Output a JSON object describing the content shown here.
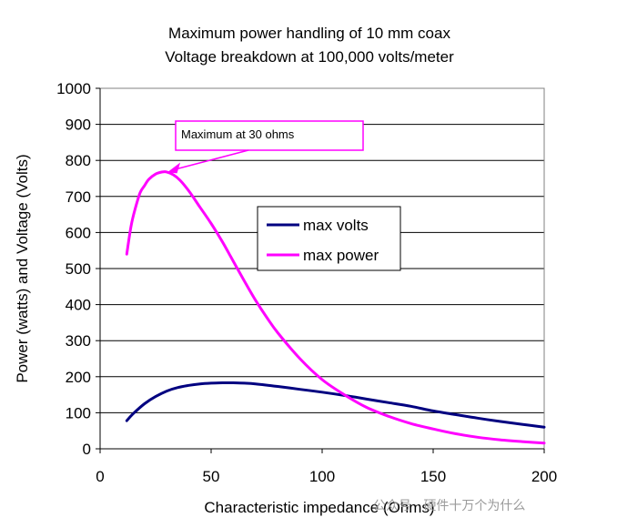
{
  "chart_data": {
    "type": "line",
    "title": "Maximum power handling of 10 mm coax",
    "subtitle": "Voltage breakdown at 100,000 volts/meter",
    "xlabel": "Characteristic impedance (Ohms)",
    "ylabel": "Power (watts) and Voltage (Volts)",
    "xlim": [
      0,
      200
    ],
    "ylim": [
      0,
      1000
    ],
    "xticks": [
      0,
      50,
      100,
      150,
      200
    ],
    "yticks": [
      0,
      100,
      200,
      300,
      400,
      500,
      600,
      700,
      800,
      900,
      1000
    ],
    "grid": "horizontal",
    "legend": "center-right",
    "series": [
      {
        "name": "max volts",
        "color": "#000080",
        "x": [
          12,
          15,
          20,
          25,
          30,
          35,
          40,
          45,
          50,
          55,
          60,
          65,
          70,
          80,
          90,
          100,
          110,
          120,
          130,
          140,
          150,
          160,
          170,
          180,
          190,
          200
        ],
        "y": [
          78,
          98,
          125,
          145,
          160,
          170,
          176,
          180,
          182,
          183,
          183,
          182,
          180,
          173,
          165,
          157,
          148,
          138,
          128,
          118,
          105,
          95,
          85,
          76,
          68,
          60
        ]
      },
      {
        "name": "max power",
        "color": "#ff00ff",
        "x": [
          12,
          14,
          16,
          18,
          20,
          22,
          25,
          28,
          30,
          33,
          36,
          40,
          45,
          50,
          55,
          60,
          65,
          70,
          75,
          80,
          90,
          100,
          110,
          120,
          130,
          140,
          150,
          160,
          170,
          180,
          190,
          200
        ],
        "y": [
          540,
          620,
          670,
          710,
          730,
          748,
          762,
          768,
          768,
          760,
          745,
          715,
          670,
          625,
          575,
          520,
          465,
          412,
          365,
          322,
          250,
          192,
          150,
          115,
          90,
          70,
          55,
          42,
          32,
          25,
          20,
          16
        ]
      }
    ],
    "annotations": [
      {
        "text": "Maximum at 30 ohms",
        "x": 30,
        "y": 768
      }
    ]
  },
  "watermark": "公众号 · 硬件十万个为什么"
}
